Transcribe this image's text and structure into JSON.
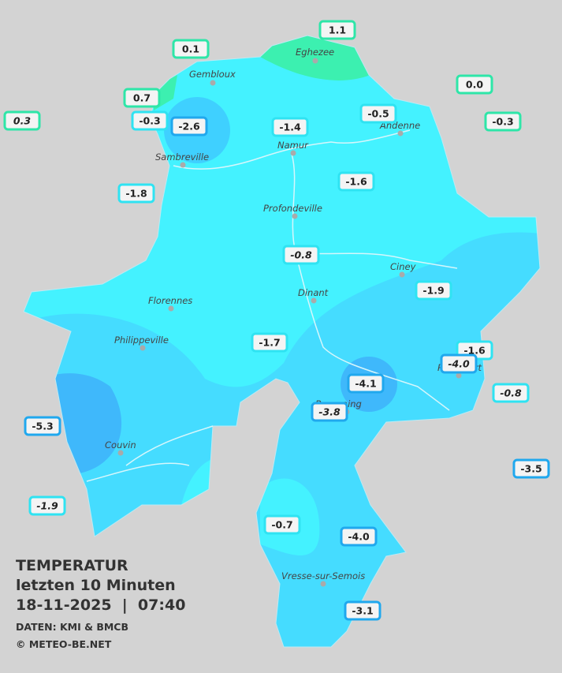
{
  "header": {
    "title": "TEMPERATUR",
    "subtitle": "letzten 10 Minuten",
    "datetime": "18-11-2025  |  07:40",
    "source": "DATEN: KMI & BMCB",
    "copyright": "© METEO-BE.NET"
  },
  "cities": [
    "Eghezee",
    "Gembloux",
    "Andenne",
    "Namur",
    "Sambreville",
    "Profondeville",
    "Ciney",
    "Dinant",
    "Florennes",
    "Philippeville",
    "Rochefort",
    "Beauraing",
    "Couvin",
    "Vresse-sur-Semois"
  ],
  "stations": [
    "1.1",
    "0.1",
    "0.7",
    "-0.3",
    "-2.6",
    "0.3",
    "0.0",
    "-0.5",
    "-0.3",
    "-1.4",
    "-1.6",
    "-1.8",
    "-0.8",
    "-1.9",
    "-1.7",
    "-1.6",
    "-4.0",
    "-4.1",
    "-0.8",
    "-3.8",
    "-5.3",
    "-3.5",
    "-1.9",
    "-0.7",
    "-4.0",
    "-3.1"
  ]
}
